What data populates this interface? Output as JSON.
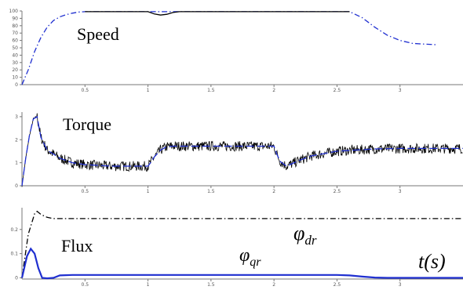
{
  "chart_data": [
    {
      "type": "line",
      "title": "",
      "panel_label": "Speed",
      "xlabel": "",
      "ylabel": "",
      "xlim": [
        0,
        3.5
      ],
      "ylim": [
        0,
        100
      ],
      "x_ticks": [
        "0.5",
        "1",
        "1.5",
        "2",
        "2.5",
        "3"
      ],
      "y_ticks": [
        "100",
        "90",
        "80",
        "70",
        "60",
        "50",
        "40",
        "30",
        "20",
        "10",
        "0"
      ],
      "series": [
        {
          "color": "#1f2fd0",
          "style": "dashdot",
          "x": [
            0,
            0.05,
            0.1,
            0.15,
            0.2,
            0.25,
            0.3,
            0.35,
            0.4,
            0.45,
            0.5,
            1.1,
            1.2,
            2.6,
            2.7,
            2.8,
            2.9,
            3.0,
            3.1,
            3.2,
            3.3
          ],
          "y": [
            0,
            20,
            45,
            64,
            78,
            87,
            92,
            95,
            97,
            98.5,
            99,
            99,
            99,
            99,
            91,
            78,
            67,
            60,
            56,
            55,
            54
          ]
        },
        {
          "color": "#000000",
          "style": "solid",
          "x": [
            0.5,
            1.0,
            1.05,
            1.1,
            1.15,
            1.2,
            1.25,
            2.6
          ],
          "y": [
            99,
            99,
            96,
            94.5,
            95.5,
            98,
            99,
            99
          ]
        }
      ]
    },
    {
      "type": "line",
      "title": "",
      "panel_label": "Torque",
      "xlabel": "",
      "ylabel": "",
      "xlim": [
        0,
        3.5
      ],
      "ylim": [
        0,
        3.2
      ],
      "x_ticks": [
        "0.5",
        "1",
        "1.5",
        "2",
        "2.5",
        "3"
      ],
      "y_ticks": [
        "3",
        "2",
        "1",
        "0"
      ],
      "series": [
        {
          "color": "#000000",
          "style": "noisy",
          "x": [
            0,
            0.03,
            0.06,
            0.09,
            0.12,
            0.15,
            0.2,
            0.3,
            0.4,
            0.5,
            0.7,
            0.9,
            1.0,
            1.02,
            1.05,
            1.1,
            1.15,
            1.2,
            1.3,
            1.5,
            1.8,
            2.0,
            2.02,
            2.05,
            2.1,
            2.2,
            2.3,
            2.5,
            2.8,
            3.0,
            3.5
          ],
          "y": [
            0,
            1.2,
            2.2,
            2.9,
            3.0,
            2.1,
            1.55,
            1.2,
            1.0,
            0.92,
            0.85,
            0.85,
            0.85,
            1.0,
            1.25,
            1.55,
            1.7,
            1.72,
            1.72,
            1.72,
            1.72,
            1.72,
            1.4,
            1.05,
            0.85,
            1.1,
            1.3,
            1.5,
            1.6,
            1.62,
            1.62
          ]
        },
        {
          "color": "#1f2fd0",
          "style": "dashed",
          "x": [
            0,
            0.03,
            0.06,
            0.09,
            0.12,
            0.15,
            0.2,
            0.3,
            0.4,
            0.5,
            0.7,
            0.9,
            1.0,
            1.02,
            1.05,
            1.1,
            1.15,
            1.2,
            1.3,
            1.5,
            1.8,
            2.0,
            2.02,
            2.05,
            2.1,
            2.2,
            2.3,
            2.5,
            2.8,
            3.0,
            3.5
          ],
          "y": [
            0,
            1.2,
            2.2,
            2.9,
            3.0,
            2.1,
            1.55,
            1.2,
            1.0,
            0.92,
            0.85,
            0.85,
            0.85,
            1.0,
            1.25,
            1.55,
            1.7,
            1.72,
            1.72,
            1.72,
            1.72,
            1.72,
            1.4,
            1.05,
            0.85,
            1.1,
            1.3,
            1.5,
            1.6,
            1.62,
            1.62
          ]
        }
      ]
    },
    {
      "type": "line",
      "title": "",
      "panel_label": "Flux",
      "xlabel": "t(s)",
      "ylabel": "",
      "xlim": [
        0,
        3.5
      ],
      "ylim": [
        -0.005,
        0.29
      ],
      "x_ticks": [
        "0.5",
        "1",
        "1.5",
        "2",
        "2.5",
        "3"
      ],
      "y_ticks": [
        "0.2",
        "0.1",
        "0"
      ],
      "annotations": {
        "phi_dr": {
          "base": "φ",
          "sub": "dr"
        },
        "phi_qr": {
          "base": "φ",
          "sub": "qr"
        }
      },
      "series": [
        {
          "name": "φdr",
          "color": "#000000",
          "style": "dashdot",
          "x": [
            0,
            0.05,
            0.1,
            0.12,
            0.15,
            0.2,
            0.25,
            0.3,
            3.5
          ],
          "y": [
            0,
            0.18,
            0.265,
            0.275,
            0.262,
            0.25,
            0.245,
            0.245,
            0.245
          ]
        },
        {
          "name": "φqr",
          "color": "#1f2fd0",
          "style": "solid",
          "x": [
            0,
            0.04,
            0.07,
            0.1,
            0.13,
            0.16,
            0.2,
            0.25,
            0.3,
            0.4,
            1.0,
            2.5,
            2.6,
            2.7,
            2.8,
            2.9,
            3.0,
            3.5
          ],
          "y": [
            0,
            0.09,
            0.12,
            0.1,
            0.04,
            0.0,
            -0.002,
            0.0,
            0.01,
            0.012,
            0.012,
            0.012,
            0.01,
            0.005,
            0.001,
            0.0,
            0.0,
            0.0
          ]
        }
      ]
    }
  ]
}
